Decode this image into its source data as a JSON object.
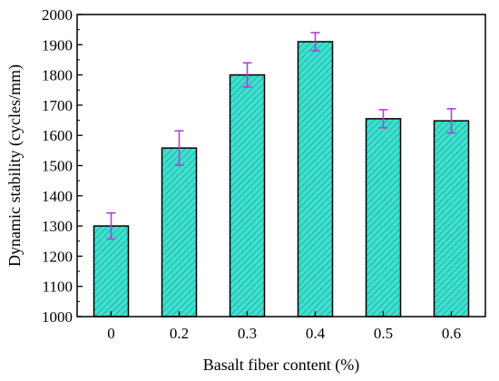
{
  "chart_data": {
    "type": "bar",
    "title": "",
    "xlabel": "Basalt fiber content (%)",
    "ylabel": "Dynamic stability (cycles/mm)",
    "categories": [
      "0",
      "0.2",
      "0.3",
      "0.4",
      "0.5",
      "0.6"
    ],
    "values": [
      1300,
      1558,
      1800,
      1910,
      1655,
      1648
    ],
    "error": [
      43,
      57,
      40,
      30,
      30,
      40
    ],
    "ylim": [
      1000,
      2000
    ],
    "yticks": [
      "1000",
      "1100",
      "1200",
      "1300",
      "1400",
      "1500",
      "1600",
      "1700",
      "1800",
      "1900",
      "2000"
    ],
    "grid": false,
    "legend": "none",
    "colors": {
      "bar_fill": "#3fe0d0",
      "bar_hatch": "#17a89a",
      "bar_edge": "#000000",
      "error_bar": "#b23fd6"
    }
  }
}
